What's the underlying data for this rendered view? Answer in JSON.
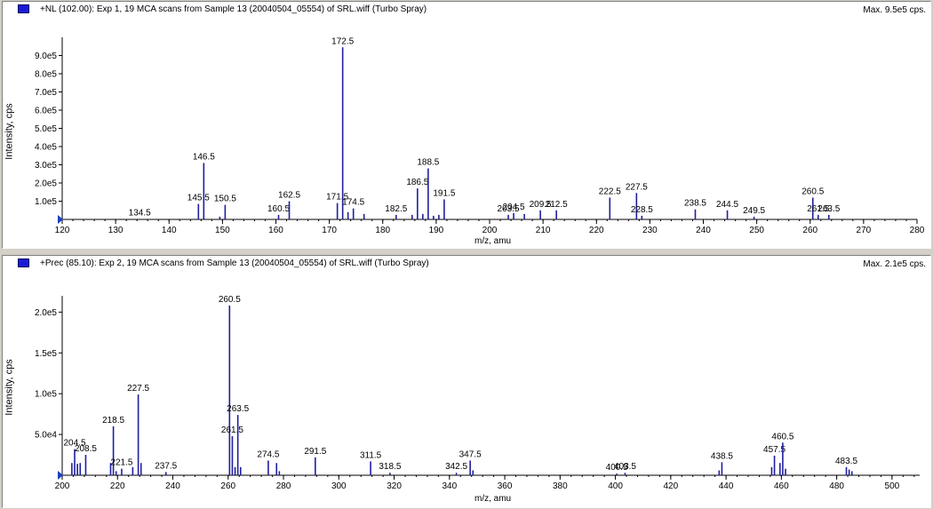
{
  "panels": [
    {
      "title": "+NL (102.00): Exp 1, 19 MCA scans from Sample 13 (20040504_05554) of SRL.wiff (Turbo Spray)",
      "max_label": "Max. 9.5e5 cps.",
      "ylabel": "Intensity, cps",
      "xlabel": "m/z, amu"
    },
    {
      "title": "+Prec (85.10): Exp 2, 19 MCA scans from Sample 13 (20040504_05554) of SRL.wiff (Turbo Spray)",
      "max_label": "Max. 2.1e5 cps.",
      "ylabel": "Intensity, cps",
      "xlabel": "m/z, amu"
    }
  ],
  "colors": {
    "peak": "#1f1f9e",
    "axis": "#000000",
    "marker": "#1f3fbf",
    "selection": "#1a1ad8"
  },
  "chart_data": [
    {
      "type": "bar",
      "xlim": [
        120,
        280
      ],
      "ylim": [
        0,
        1000000
      ],
      "xticks": [
        120,
        130,
        140,
        150,
        160,
        170,
        180,
        190,
        200,
        210,
        220,
        230,
        240,
        250,
        260,
        270,
        280
      ],
      "yticks": [
        {
          "v": 100000,
          "label": "1.0e5"
        },
        {
          "v": 200000,
          "label": "2.0e5"
        },
        {
          "v": 300000,
          "label": "3.0e5"
        },
        {
          "v": 400000,
          "label": "4.0e5"
        },
        {
          "v": 500000,
          "label": "5.0e5"
        },
        {
          "v": 600000,
          "label": "6.0e5"
        },
        {
          "v": 700000,
          "label": "7.0e5"
        },
        {
          "v": 800000,
          "label": "8.0e5"
        },
        {
          "v": 900000,
          "label": "9.0e5"
        }
      ],
      "peaks": [
        {
          "x": 134.5,
          "y": 3000,
          "label": "134.5"
        },
        {
          "x": 145.5,
          "y": 85000,
          "label": "145.5"
        },
        {
          "x": 146.5,
          "y": 310000,
          "label": "146.5"
        },
        {
          "x": 150.5,
          "y": 80000,
          "label": "150.5"
        },
        {
          "x": 149.5,
          "y": 15000
        },
        {
          "x": 160.5,
          "y": 25000,
          "label": "160.5"
        },
        {
          "x": 162.5,
          "y": 100000,
          "label": "162.5"
        },
        {
          "x": 171.5,
          "y": 90000,
          "label": "171.5"
        },
        {
          "x": 172.5,
          "y": 945000,
          "label": "172.5"
        },
        {
          "x": 173.5,
          "y": 40000
        },
        {
          "x": 174.5,
          "y": 60000,
          "label": "174.5"
        },
        {
          "x": 176.5,
          "y": 30000
        },
        {
          "x": 182.5,
          "y": 25000,
          "label": "182.5"
        },
        {
          "x": 185.5,
          "y": 25000
        },
        {
          "x": 186.5,
          "y": 170000,
          "label": "186.5"
        },
        {
          "x": 187.5,
          "y": 30000
        },
        {
          "x": 188.5,
          "y": 280000,
          "label": "188.5"
        },
        {
          "x": 189.5,
          "y": 20000
        },
        {
          "x": 190.5,
          "y": 25000
        },
        {
          "x": 191.5,
          "y": 110000,
          "label": "191.5"
        },
        {
          "x": 203.5,
          "y": 25000,
          "label": "203.5"
        },
        {
          "x": 204.5,
          "y": 35000,
          "label": "204.5"
        },
        {
          "x": 206.5,
          "y": 30000
        },
        {
          "x": 209.5,
          "y": 50000,
          "label": "209.5"
        },
        {
          "x": 212.5,
          "y": 50000,
          "label": "212.5"
        },
        {
          "x": 222.5,
          "y": 120000,
          "label": "222.5"
        },
        {
          "x": 227.5,
          "y": 145000,
          "label": "227.5"
        },
        {
          "x": 228.5,
          "y": 20000,
          "label": "228.5"
        },
        {
          "x": 238.5,
          "y": 55000,
          "label": "238.5"
        },
        {
          "x": 244.5,
          "y": 50000,
          "label": "244.5"
        },
        {
          "x": 249.5,
          "y": 15000,
          "label": "249.5"
        },
        {
          "x": 260.5,
          "y": 120000,
          "label": "260.5"
        },
        {
          "x": 261.5,
          "y": 25000,
          "label": "261.5"
        },
        {
          "x": 263.5,
          "y": 25000,
          "label": "263.5"
        }
      ]
    },
    {
      "type": "bar",
      "xlim": [
        200,
        510
      ],
      "ylim": [
        0,
        220000
      ],
      "xticks": [
        200,
        220,
        240,
        260,
        280,
        300,
        320,
        340,
        360,
        380,
        400,
        420,
        440,
        460,
        480,
        500
      ],
      "yticks": [
        {
          "v": 50000,
          "label": "5.0e4"
        },
        {
          "v": 100000,
          "label": "1.0e5"
        },
        {
          "v": 150000,
          "label": "1.5e5"
        },
        {
          "v": 200000,
          "label": "2.0e5"
        }
      ],
      "peaks": [
        {
          "x": 203.5,
          "y": 15000
        },
        {
          "x": 204.5,
          "y": 32000,
          "label": "204.5"
        },
        {
          "x": 205.5,
          "y": 14000
        },
        {
          "x": 206.5,
          "y": 15000
        },
        {
          "x": 208.5,
          "y": 25000,
          "label": "208.5"
        },
        {
          "x": 217.5,
          "y": 15000
        },
        {
          "x": 218.5,
          "y": 60000,
          "label": "218.5"
        },
        {
          "x": 219.5,
          "y": 5000
        },
        {
          "x": 221.5,
          "y": 8000,
          "label": "221.5"
        },
        {
          "x": 225.5,
          "y": 10000
        },
        {
          "x": 227.5,
          "y": 99000,
          "label": "227.5"
        },
        {
          "x": 228.5,
          "y": 15000
        },
        {
          "x": 237.5,
          "y": 4000,
          "label": "237.5"
        },
        {
          "x": 260.5,
          "y": 208000,
          "label": "260.5"
        },
        {
          "x": 261.5,
          "y": 48000,
          "label": "261.5"
        },
        {
          "x": 262.5,
          "y": 10000
        },
        {
          "x": 263.5,
          "y": 74000,
          "label": "263.5"
        },
        {
          "x": 264.5,
          "y": 10000
        },
        {
          "x": 274.5,
          "y": 18000,
          "label": "274.5"
        },
        {
          "x": 277.5,
          "y": 15000
        },
        {
          "x": 278.5,
          "y": 5000
        },
        {
          "x": 291.5,
          "y": 22000,
          "label": "291.5"
        },
        {
          "x": 311.5,
          "y": 17000,
          "label": "311.5"
        },
        {
          "x": 318.5,
          "y": 3000,
          "label": "318.5"
        },
        {
          "x": 342.5,
          "y": 3000,
          "label": "342.5"
        },
        {
          "x": 347.5,
          "y": 18000,
          "label": "347.5"
        },
        {
          "x": 348.5,
          "y": 6000
        },
        {
          "x": 400.5,
          "y": 2000,
          "label": "400.5"
        },
        {
          "x": 403.5,
          "y": 3000,
          "label": "403.5"
        },
        {
          "x": 437.5,
          "y": 6000
        },
        {
          "x": 438.5,
          "y": 16000,
          "label": "438.5"
        },
        {
          "x": 456.5,
          "y": 10000
        },
        {
          "x": 457.5,
          "y": 24000,
          "label": "457.5"
        },
        {
          "x": 459.5,
          "y": 15000
        },
        {
          "x": 460.5,
          "y": 40000,
          "label": "460.5"
        },
        {
          "x": 461.5,
          "y": 8000
        },
        {
          "x": 483.5,
          "y": 10000,
          "label": "483.5"
        },
        {
          "x": 484.5,
          "y": 7000
        },
        {
          "x": 485.5,
          "y": 5000
        }
      ]
    }
  ]
}
